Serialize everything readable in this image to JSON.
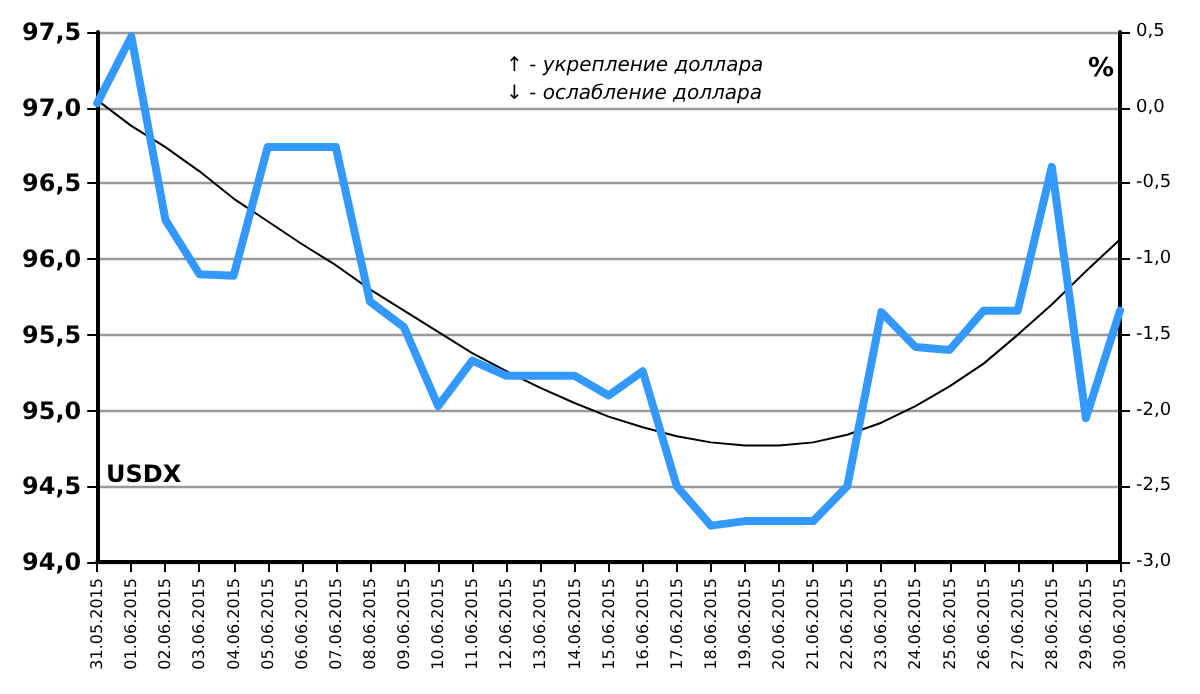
{
  "chart_data": {
    "type": "line",
    "y2label": "%",
    "annotations": [
      "↑ - укрепление доллара",
      "↓ - ослабление доллара",
      "USDX"
    ],
    "categories": [
      "31.05.2015",
      "01.06.2015",
      "02.06.2015",
      "03.06.2015",
      "04.06.2015",
      "05.06.2015",
      "06.06.2015",
      "07.06.2015",
      "08.06.2015",
      "09.06.2015",
      "10.06.2015",
      "11.06.2015",
      "12.06.2015",
      "13.06.2015",
      "14.06.2015",
      "15.06.2015",
      "16.06.2015",
      "17.06.2015",
      "18.06.2015",
      "19.06.2015",
      "20.06.2015",
      "21.06.2015",
      "22.06.2015",
      "23.06.2015",
      "24.06.2015",
      "25.06.2015",
      "26.06.2015",
      "27.06.2015",
      "28.06.2015",
      "29.06.2015",
      "30.06.2015"
    ],
    "series": [
      {
        "color": "#3399ff",
        "values": [
          97.03,
          97.47,
          96.26,
          95.9,
          95.89,
          96.74,
          96.74,
          96.74,
          95.72,
          95.55,
          95.03,
          95.33,
          95.23,
          95.23,
          95.23,
          95.1,
          95.26,
          94.5,
          94.24,
          94.27,
          94.27,
          94.27,
          94.5,
          95.65,
          95.42,
          95.4,
          95.66,
          95.66,
          96.61,
          94.95,
          95.66
        ]
      },
      {
        "color": "#000000",
        "values": [
          97.05,
          96.88,
          96.74,
          96.58,
          96.4,
          96.25,
          96.1,
          95.96,
          95.8,
          95.66,
          95.52,
          95.38,
          95.26,
          95.15,
          95.05,
          94.96,
          94.89,
          94.83,
          94.79,
          94.77,
          94.77,
          94.79,
          94.84,
          94.92,
          95.03,
          95.16,
          95.31,
          95.5,
          95.7,
          95.92,
          96.13
        ]
      }
    ],
    "ylim": [
      94,
      97.5
    ],
    "yticks": [
      {
        "value": 94,
        "label": "94,0"
      },
      {
        "value": 94.5,
        "label": "94,5"
      },
      {
        "value": 95,
        "label": "95,0"
      },
      {
        "value": 95.5,
        "label": "95,5"
      },
      {
        "value": 96,
        "label": "96,0"
      },
      {
        "value": 96.5,
        "label": "96,5"
      },
      {
        "value": 97,
        "label": "97,0"
      },
      {
        "value": 97.5,
        "label": "97,5"
      }
    ],
    "y2lim": [
      -3,
      0.5
    ],
    "y2ticks": [
      {
        "value": -3,
        "label": "-3,0"
      },
      {
        "value": -2.5,
        "label": "-2,5"
      },
      {
        "value": -2,
        "label": "-2,0"
      },
      {
        "value": -1.5,
        "label": "-1,5"
      },
      {
        "value": -1,
        "label": "-1,0"
      },
      {
        "value": -0.5,
        "label": "-0,5"
      },
      {
        "value": 0,
        "label": "0,0"
      },
      {
        "value": 0.5,
        "label": "0,5"
      }
    ],
    "grid": "y",
    "marker": "none",
    "line_style": "solid"
  }
}
